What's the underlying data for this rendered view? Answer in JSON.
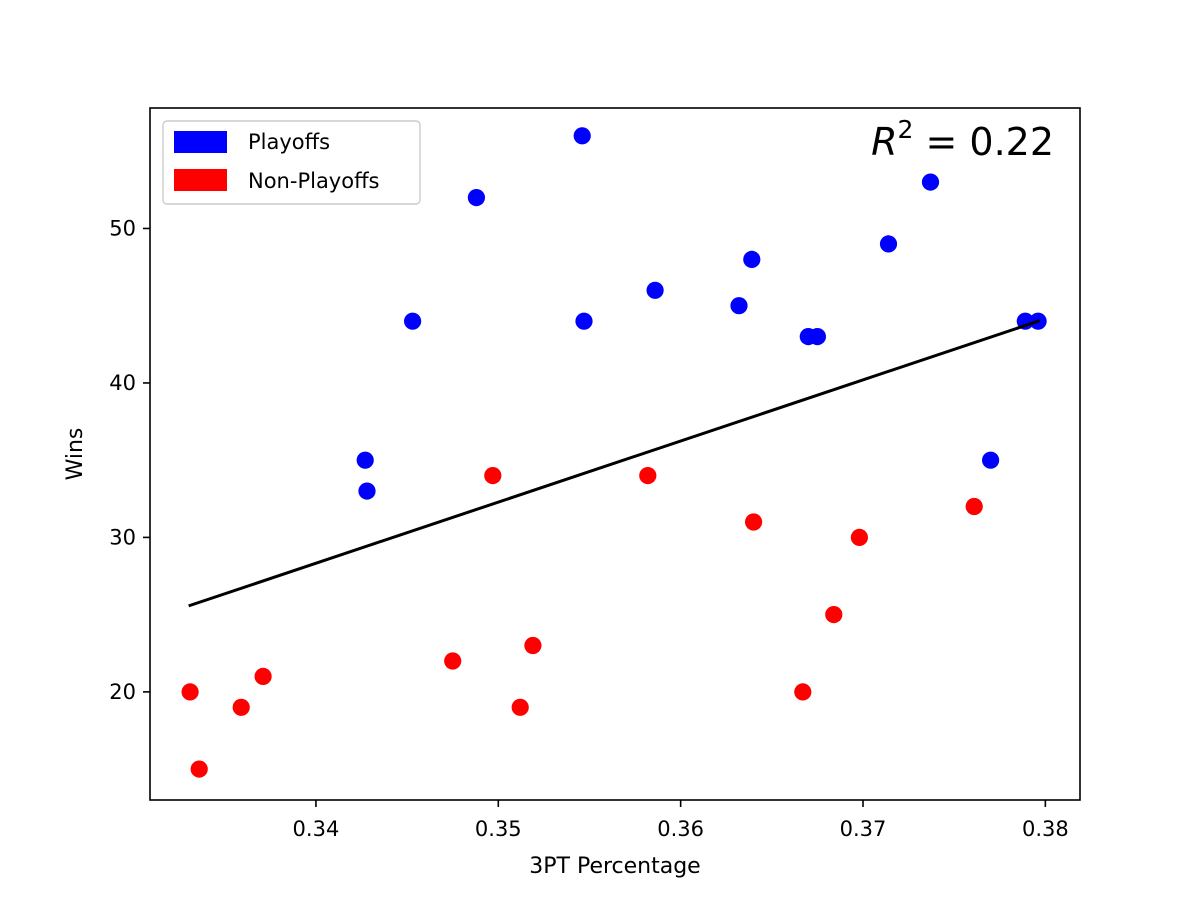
{
  "chart_data": {
    "type": "scatter",
    "title": "",
    "xlabel": "3PT Percentage",
    "ylabel": "Wins",
    "xlim": [
      0.3309,
      0.3819
    ],
    "ylim": [
      13.0,
      57.8
    ],
    "xticks": [
      0.34,
      0.35,
      0.36,
      0.37,
      0.38
    ],
    "xtick_labels": [
      "0.34",
      "0.35",
      "0.36",
      "0.37",
      "0.38"
    ],
    "yticks": [
      20,
      30,
      40,
      50
    ],
    "ytick_labels": [
      "20",
      "30",
      "40",
      "50"
    ],
    "grid": false,
    "legend_position": "top-left",
    "annotation": {
      "base": "R",
      "exponent": "2",
      "rest": " = 0.22"
    },
    "series": [
      {
        "name": "Playoffs",
        "color": "#0000ff",
        "points": [
          [
            0.3427,
            35
          ],
          [
            0.3428,
            33
          ],
          [
            0.3453,
            44
          ],
          [
            0.3488,
            52
          ],
          [
            0.3546,
            56
          ],
          [
            0.3547,
            44
          ],
          [
            0.3586,
            46
          ],
          [
            0.3632,
            45
          ],
          [
            0.3639,
            48
          ],
          [
            0.367,
            43
          ],
          [
            0.3675,
            43
          ],
          [
            0.3714,
            49
          ],
          [
            0.3737,
            53
          ],
          [
            0.377,
            35
          ],
          [
            0.3789,
            44
          ],
          [
            0.3796,
            44
          ]
        ]
      },
      {
        "name": "Non-Playoffs",
        "color": "#ff0000",
        "points": [
          [
            0.3331,
            20
          ],
          [
            0.3336,
            15
          ],
          [
            0.3359,
            19
          ],
          [
            0.3371,
            21
          ],
          [
            0.3475,
            22
          ],
          [
            0.3497,
            34
          ],
          [
            0.3512,
            19
          ],
          [
            0.3519,
            23
          ],
          [
            0.3582,
            34
          ],
          [
            0.364,
            31
          ],
          [
            0.3667,
            20
          ],
          [
            0.3684,
            25
          ],
          [
            0.3698,
            30
          ],
          [
            0.3761,
            32
          ]
        ]
      }
    ],
    "fit_line": {
      "color": "#000000",
      "x": [
        0.3331,
        0.3796
      ],
      "y": [
        25.6,
        44.0
      ]
    }
  }
}
